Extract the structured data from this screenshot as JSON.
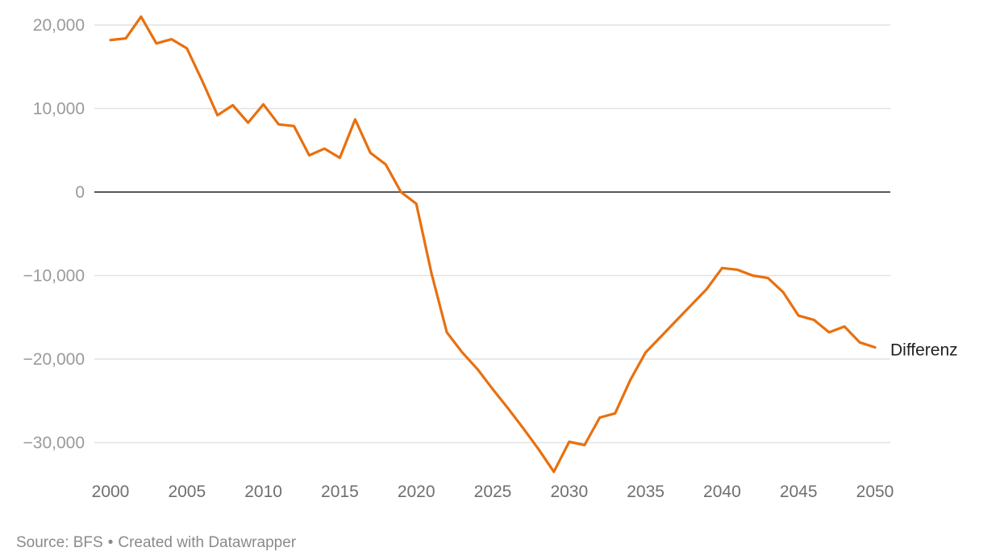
{
  "chart_data": {
    "type": "line",
    "y_ticks": [
      20000,
      10000,
      0,
      -10000,
      -20000,
      -30000
    ],
    "y_tick_labels": [
      "20,000",
      "10,000",
      "0",
      "−10,000",
      "−20,000",
      "−30,000"
    ],
    "x_ticks": [
      2000,
      2005,
      2010,
      2015,
      2020,
      2025,
      2030,
      2035,
      2040,
      2045,
      2050
    ],
    "x_tick_labels": [
      "2000",
      "2005",
      "2010",
      "2015",
      "2020",
      "2025",
      "2030",
      "2035",
      "2040",
      "2045",
      "2050"
    ],
    "xlim": [
      2000,
      2050
    ],
    "ylim": [
      -33000,
      20000
    ],
    "grid": true,
    "zero_line": true,
    "colors": {
      "series": "#e8700f",
      "grid": "#e2e2e2",
      "zero_line": "#222222"
    },
    "x": [
      2000,
      2001,
      2002,
      2003,
      2004,
      2005,
      2006,
      2007,
      2008,
      2009,
      2010,
      2011,
      2012,
      2013,
      2014,
      2015,
      2016,
      2017,
      2018,
      2019,
      2020,
      2021,
      2022,
      2023,
      2024,
      2025,
      2026,
      2027,
      2028,
      2029,
      2030,
      2031,
      2032,
      2033,
      2034,
      2035,
      2036,
      2037,
      2038,
      2039,
      2040,
      2041,
      2042,
      2043,
      2044,
      2045,
      2046,
      2047,
      2048,
      2049,
      2050
    ],
    "series": [
      {
        "name": "Differenz",
        "values": [
          18200,
          18400,
          21000,
          17800,
          18300,
          17200,
          13300,
          9200,
          10400,
          8300,
          10500,
          8100,
          7900,
          4400,
          5200,
          4100,
          8700,
          4700,
          3300,
          0,
          -1400,
          -9800,
          -16800,
          -19200,
          -21200,
          -23600,
          -25900,
          -28300,
          -30800,
          -33500,
          -29900,
          -30300,
          -27000,
          -26500,
          -22500,
          -19200,
          -17300,
          -15400,
          -13500,
          -11600,
          -9100,
          -9300,
          -10000,
          -10300,
          -12000,
          -14800,
          -15300,
          -16800,
          -16100,
          -18000,
          -18600
        ]
      }
    ]
  },
  "footer": {
    "source": "Source: BFS",
    "separator": "•",
    "credit": "Created with Datawrapper"
  }
}
